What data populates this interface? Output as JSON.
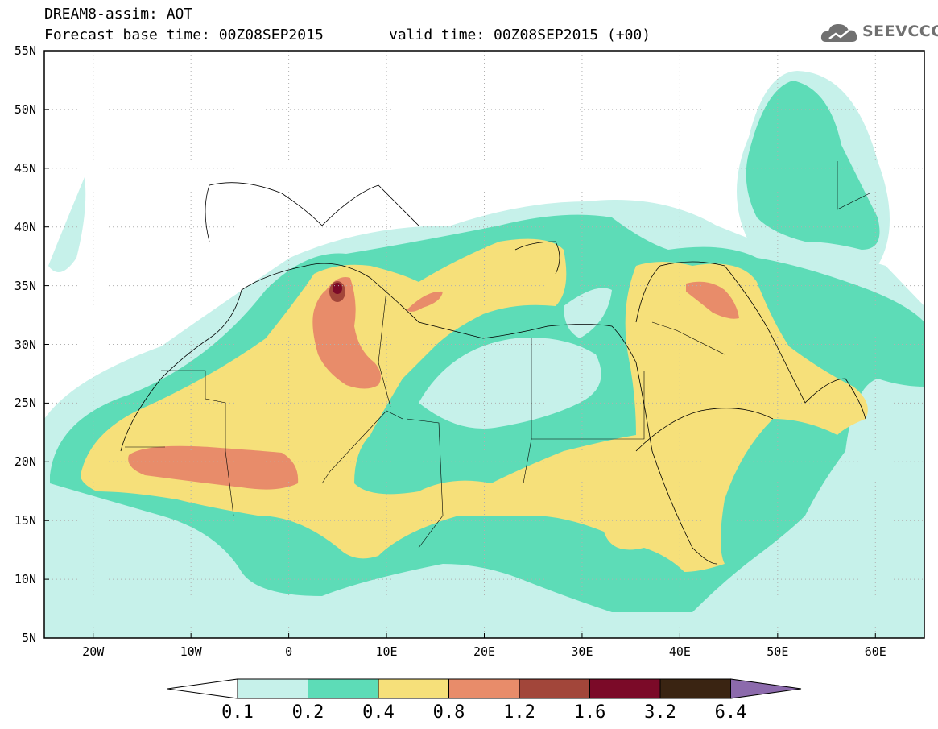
{
  "header": {
    "title": "DREAM8-assim: AOT",
    "base_time": "Forecast base time: 00Z08SEP2015",
    "valid_time": "valid time: 00Z08SEP2015 (+00)",
    "logo_text": "SEEVCCC"
  },
  "map": {
    "variable": "AOT",
    "projection": "lat-lon",
    "lon_range": [
      -25,
      65
    ],
    "lat_range": [
      5,
      55
    ],
    "lat_ticks": [
      "55N",
      "50N",
      "45N",
      "40N",
      "35N",
      "30N",
      "25N",
      "20N",
      "15N",
      "10N",
      "5N"
    ],
    "lon_ticks": [
      "20W",
      "10W",
      "0",
      "10E",
      "20E",
      "30E",
      "40E",
      "50E",
      "60E"
    ],
    "max_location": {
      "lon": 5,
      "lat": 34.8,
      "class": "1.6-3.2"
    }
  },
  "colorbar": {
    "labels": [
      "0.1",
      "0.2",
      "0.4",
      "0.8",
      "1.2",
      "1.6",
      "3.2",
      "6.4"
    ],
    "colors": [
      "#c6f1ea",
      "#5ddcb7",
      "#f6e07a",
      "#e88c6a",
      "#a2463a",
      "#7b0a28",
      "#3a2412",
      "#8c6aac"
    ],
    "under_color": "#ffffff"
  }
}
